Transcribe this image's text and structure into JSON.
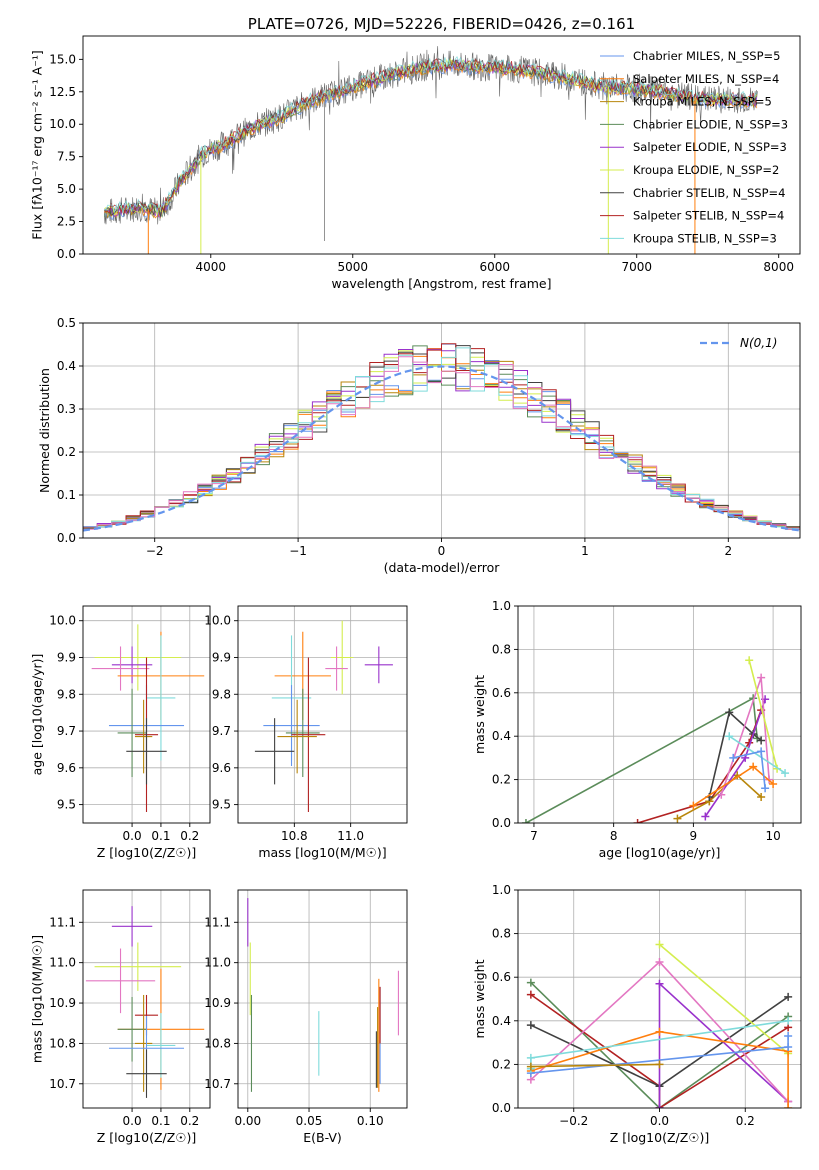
{
  "colors": {
    "Chabrier MILES": "#6495ed",
    "Salpeter MILES": "#ff7f0e",
    "Kroupa MILES": "#b8860b",
    "Chabrier ELODIE": "#5b8c5a",
    "Salpeter ELODIE": "#9932cc",
    "Kroupa ELODIE": "#d4ed4f",
    "Chabrier STELIB": "#404040",
    "Salpeter STELIB": "#b22222",
    "Kroupa STELIB": "#7fdbdb",
    "extra_pink": "#e377c2",
    "normal_curve": "#6495ed"
  },
  "chart_data": [
    {
      "id": "spectrum",
      "type": "line",
      "title": "PLATE=0726, MJD=52226, FIBERID=0426, z=0.161",
      "xlabel": "wavelength [Angstrom, rest frame]",
      "ylabel": "Flux [fλ10⁻¹⁷ erg cm⁻² s⁻¹ A⁻¹]",
      "xlim": [
        3100,
        8150
      ],
      "ylim": [
        0,
        16.8
      ],
      "xticks": [
        4000,
        5000,
        6000,
        7000,
        8000
      ],
      "xtick_labels": [
        "4000",
        "5000",
        "6000",
        "7000",
        "8000"
      ],
      "yticks": [
        0,
        2.5,
        5,
        7.5,
        10,
        12.5,
        15
      ],
      "ytick_labels": [
        "0.0",
        "2.5",
        "5.0",
        "7.5",
        "10.0",
        "12.5",
        "15.0"
      ],
      "legend_position": "upper right",
      "continuum": [
        [
          3250,
          3.2
        ],
        [
          3400,
          3.4
        ],
        [
          3500,
          3.6
        ],
        [
          3650,
          3.2
        ],
        [
          3800,
          5.8
        ],
        [
          3950,
          7.8
        ],
        [
          4100,
          8.5
        ],
        [
          4300,
          9.8
        ],
        [
          4500,
          10.6
        ],
        [
          4700,
          11.8
        ],
        [
          4900,
          12.5
        ],
        [
          5100,
          13.2
        ],
        [
          5300,
          13.9
        ],
        [
          5500,
          14.4
        ],
        [
          5700,
          14.6
        ],
        [
          5900,
          14.4
        ],
        [
          6100,
          14.3
        ],
        [
          6300,
          14.0
        ],
        [
          6500,
          13.6
        ],
        [
          6700,
          13.0
        ],
        [
          6900,
          12.8
        ],
        [
          7100,
          12.6
        ],
        [
          7300,
          12.2
        ],
        [
          7500,
          11.9
        ],
        [
          7700,
          11.9
        ],
        [
          7850,
          11.8
        ]
      ],
      "models": [
        {
          "name": "Chabrier MILES",
          "label": "Chabrier MILES, N_SSP=5",
          "n_ssp": 5
        },
        {
          "name": "Salpeter MILES",
          "label": "Salpeter MILES, N_SSP=4",
          "n_ssp": 4
        },
        {
          "name": "Kroupa MILES",
          "label": "Kroupa MILES, N_SSP=5",
          "n_ssp": 5
        },
        {
          "name": "Chabrier ELODIE",
          "label": "Chabrier ELODIE, N_SSP=3",
          "n_ssp": 3
        },
        {
          "name": "Salpeter ELODIE",
          "label": "Salpeter ELODIE, N_SSP=3",
          "n_ssp": 3
        },
        {
          "name": "Kroupa ELODIE",
          "label": "Kroupa ELODIE, N_SSP=2",
          "n_ssp": 2
        },
        {
          "name": "Chabrier STELIB",
          "label": "Chabrier STELIB, N_SSP=4",
          "n_ssp": 4
        },
        {
          "name": "Salpeter STELIB",
          "label": "Salpeter STELIB, N_SSP=4",
          "n_ssp": 4
        },
        {
          "name": "Kroupa STELIB",
          "label": "Kroupa STELIB, N_SSP=3",
          "n_ssp": 3
        }
      ],
      "drops": [
        {
          "model": "Salpeter MILES",
          "x": 3560
        },
        {
          "model": "Kroupa ELODIE",
          "x": 3930
        },
        {
          "model": "Kroupa ELODIE",
          "x": 6800
        },
        {
          "model": "Salpeter MILES",
          "x": 7410
        }
      ],
      "spikes": [
        {
          "x": 4800,
          "y": 1.0
        }
      ]
    },
    {
      "id": "residuals",
      "type": "histogram",
      "xlabel": "(data-model)/error",
      "ylabel": "Normed distribution",
      "xlim": [
        -2.5,
        2.5
      ],
      "ylim": [
        0,
        0.5
      ],
      "xticks": [
        -2,
        -1,
        0,
        1,
        2
      ],
      "xtick_labels": [
        "−2",
        "−1",
        "0",
        "1",
        "2"
      ],
      "yticks": [
        0,
        0.1,
        0.2,
        0.3,
        0.4,
        0.5
      ],
      "ytick_labels": [
        "0.0",
        "0.1",
        "0.2",
        "0.3",
        "0.4",
        "0.5"
      ],
      "grid": true,
      "bin_width": 0.1,
      "legend": [
        {
          "name": "N(0,1)",
          "style": "dashed"
        }
      ]
    },
    {
      "id": "age-vs-Z",
      "type": "errorbar",
      "xlabel": "Z [log10(Z/Z☉)]",
      "ylabel": "age  [log10(age/yr)]",
      "xlim": [
        -0.17,
        0.27
      ],
      "ylim": [
        9.45,
        10.04
      ],
      "xticks": [
        0,
        0.1,
        0.2
      ],
      "xtick_labels": [
        "0.0",
        "0.1",
        "0.2"
      ],
      "yticks": [
        9.5,
        9.6,
        9.7,
        9.8,
        9.9,
        10.0
      ],
      "ytick_labels": [
        "9.5",
        "9.6",
        "9.7",
        "9.8",
        "9.9",
        "10.0"
      ],
      "points": [
        {
          "model": "Kroupa ELODIE",
          "x": 0.02,
          "y": 9.9,
          "xerr": 0.15,
          "yerr": 0.09
        },
        {
          "model": "Salpeter ELODIE",
          "x": 0.0,
          "y": 9.88,
          "xerr": 0.07,
          "yerr": 0.05
        },
        {
          "model": "extra_pink",
          "x": -0.04,
          "y": 9.87,
          "xerr": 0.1,
          "yerr": 0.06
        },
        {
          "model": "Salpeter MILES",
          "x": 0.1,
          "y": 9.85,
          "xerr": 0.15,
          "yerr": 0.12
        },
        {
          "model": "Kroupa STELIB",
          "x": 0.1,
          "y": 9.79,
          "xerr": 0.05,
          "yerr": 0.17
        },
        {
          "model": "Chabrier MILES",
          "x": 0.05,
          "y": 9.715,
          "xerr": 0.13,
          "yerr": 0.11
        },
        {
          "model": "Chabrier ELODIE",
          "x": 0.0,
          "y": 9.695,
          "xerr": 0.05,
          "yerr": 0.12
        },
        {
          "model": "Salpeter STELIB",
          "x": 0.05,
          "y": 9.69,
          "xerr": 0.04,
          "yerr": 0.21
        },
        {
          "model": "Kroupa MILES",
          "x": 0.04,
          "y": 9.685,
          "xerr": 0.03,
          "yerr": 0.1
        },
        {
          "model": "Chabrier STELIB",
          "x": 0.05,
          "y": 9.645,
          "xerr": 0.07,
          "yerr": 0.09
        }
      ]
    },
    {
      "id": "age-vs-mass",
      "type": "errorbar",
      "xlabel": "mass [log10(M/M☉)]",
      "ylabel": "",
      "xlim": [
        10.6,
        11.2
      ],
      "ylim": [
        9.45,
        10.04
      ],
      "xticks": [
        10.8,
        11.0
      ],
      "xtick_labels": [
        "10.8",
        "11.0"
      ],
      "yticks": [
        9.5,
        9.6,
        9.7,
        9.8,
        9.9,
        10.0
      ],
      "ytick_labels": [
        "9.5",
        "9.6",
        "9.7",
        "9.8",
        "9.9",
        "10.0"
      ],
      "points": [
        {
          "model": "Salpeter ELODIE",
          "x": 11.1,
          "y": 9.88,
          "xerr": 0.05,
          "yerr": 0.05
        },
        {
          "model": "Kroupa ELODIE",
          "x": 10.97,
          "y": 9.9,
          "xerr": 0.04,
          "yerr": 0.1
        },
        {
          "model": "extra_pink",
          "x": 10.95,
          "y": 9.87,
          "xerr": 0.04,
          "yerr": 0.06
        },
        {
          "model": "Salpeter MILES",
          "x": 10.83,
          "y": 9.85,
          "xerr": 0.1,
          "yerr": 0.12
        },
        {
          "model": "Kroupa STELIB",
          "x": 10.79,
          "y": 9.79,
          "xerr": 0.07,
          "yerr": 0.17
        },
        {
          "model": "Chabrier MILES",
          "x": 10.79,
          "y": 9.715,
          "xerr": 0.1,
          "yerr": 0.11
        },
        {
          "model": "Chabrier ELODIE",
          "x": 10.83,
          "y": 9.695,
          "xerr": 0.06,
          "yerr": 0.12
        },
        {
          "model": "Salpeter STELIB",
          "x": 10.85,
          "y": 9.69,
          "xerr": 0.06,
          "yerr": 0.21
        },
        {
          "model": "Kroupa MILES",
          "x": 10.81,
          "y": 9.685,
          "xerr": 0.07,
          "yerr": 0.1
        },
        {
          "model": "Chabrier STELIB",
          "x": 10.73,
          "y": 9.645,
          "xerr": 0.07,
          "yerr": 0.09
        }
      ]
    },
    {
      "id": "weight-vs-age",
      "type": "line",
      "xlabel": "age  [log10(age/yr)]",
      "ylabel": "mass weight",
      "xlim": [
        6.8,
        10.35
      ],
      "ylim": [
        0,
        1
      ],
      "xticks": [
        7,
        8,
        9,
        10
      ],
      "xtick_labels": [
        "7",
        "8",
        "9",
        "10"
      ],
      "yticks": [
        0,
        0.2,
        0.4,
        0.6,
        0.8,
        1.0
      ],
      "ytick_labels": [
        "0.0",
        "0.2",
        "0.4",
        "0.6",
        "0.8",
        "1.0"
      ],
      "grid": true,
      "series": [
        {
          "model": "Chabrier ELODIE",
          "x": [
            6.9,
            9.75,
            9.8
          ],
          "y": [
            0.0,
            0.575,
            0.39
          ]
        },
        {
          "model": "Salpeter STELIB",
          "x": [
            8.3,
            9.2,
            9.7,
            9.85
          ],
          "y": [
            0.0,
            0.1,
            0.37,
            0.52
          ]
        },
        {
          "model": "Kroupa MILES",
          "x": [
            8.8,
            9.2,
            9.55,
            9.85
          ],
          "y": [
            0.02,
            0.1,
            0.22,
            0.12
          ]
        },
        {
          "model": "Chabrier STELIB",
          "x": [
            9.2,
            9.45,
            9.75,
            9.85
          ],
          "y": [
            0.12,
            0.51,
            0.41,
            0.38
          ]
        },
        {
          "model": "Salpeter ELODIE",
          "x": [
            9.15,
            9.65,
            9.9
          ],
          "y": [
            0.03,
            0.3,
            0.57
          ]
        },
        {
          "model": "extra_pink",
          "x": [
            9.35,
            9.85,
            9.95
          ],
          "y": [
            0.13,
            0.67,
            0.2
          ]
        },
        {
          "model": "Kroupa ELODIE",
          "x": [
            9.7,
            10.05
          ],
          "y": [
            0.75,
            0.25
          ]
        },
        {
          "model": "Kroupa STELIB",
          "x": [
            9.45,
            10.15
          ],
          "y": [
            0.4,
            0.23
          ]
        },
        {
          "model": "Salpeter MILES",
          "x": [
            9.0,
            9.75,
            10.0
          ],
          "y": [
            0.08,
            0.26,
            0.18
          ]
        },
        {
          "model": "Chabrier MILES",
          "x": [
            9.5,
            9.85,
            9.9
          ],
          "y": [
            0.3,
            0.33,
            0.16
          ]
        }
      ]
    },
    {
      "id": "mass-vs-Z",
      "type": "errorbar",
      "xlabel": "Z [log10(Z/Z☉)]",
      "ylabel": "mass [log10(M/M☉)]",
      "xlim": [
        -0.17,
        0.27
      ],
      "ylim": [
        10.64,
        11.18
      ],
      "xticks": [
        0,
        0.1,
        0.2
      ],
      "xtick_labels": [
        "0.0",
        "0.1",
        "0.2"
      ],
      "yticks": [
        10.7,
        10.8,
        10.9,
        11.0,
        11.1
      ],
      "ytick_labels": [
        "10.7",
        "10.8",
        "10.9",
        "11.0",
        "11.1"
      ],
      "points": [
        {
          "model": "Salpeter ELODIE",
          "x": 0.0,
          "y": 11.09,
          "xerr": 0.07,
          "yerr": 0.05
        },
        {
          "model": "Kroupa ELODIE",
          "x": 0.02,
          "y": 10.99,
          "xerr": 0.15,
          "yerr": 0.06
        },
        {
          "model": "extra_pink",
          "x": -0.04,
          "y": 10.955,
          "xerr": 0.12,
          "yerr": 0.08
        },
        {
          "model": "Salpeter STELIB",
          "x": 0.05,
          "y": 10.87,
          "xerr": 0.04,
          "yerr": 0.05
        },
        {
          "model": "Salpeter MILES",
          "x": 0.1,
          "y": 10.835,
          "xerr": 0.15,
          "yerr": 0.15
        },
        {
          "model": "Chabrier ELODIE",
          "x": 0.0,
          "y": 10.835,
          "xerr": 0.05,
          "yerr": 0.08
        },
        {
          "model": "Kroupa MILES",
          "x": 0.04,
          "y": 10.8,
          "xerr": 0.03,
          "yerr": 0.12
        },
        {
          "model": "Kroupa STELIB",
          "x": 0.1,
          "y": 10.795,
          "xerr": 0.05,
          "yerr": 0.08
        },
        {
          "model": "Chabrier MILES",
          "x": 0.05,
          "y": 10.788,
          "xerr": 0.13,
          "yerr": 0.08
        },
        {
          "model": "Chabrier STELIB",
          "x": 0.05,
          "y": 10.725,
          "xerr": 0.07,
          "yerr": 0.06
        }
      ]
    },
    {
      "id": "mass-vs-ebv",
      "type": "errorbar",
      "xlabel": "E(B-V)",
      "ylabel": "",
      "xlim": [
        -0.008,
        0.13
      ],
      "ylim": [
        10.64,
        11.18
      ],
      "xticks": [
        0.0,
        0.05,
        0.1
      ],
      "xtick_labels": [
        "0.00",
        "0.05",
        "0.10"
      ],
      "yticks": [
        10.7,
        10.8,
        10.9,
        11.0,
        11.1
      ],
      "ytick_labels": [
        "10.7",
        "10.8",
        "10.9",
        "11.0",
        "11.1"
      ],
      "points": [
        {
          "model": "Salpeter ELODIE",
          "x": 0.0,
          "y": 11.1,
          "xerr": 0.0,
          "yerr": 0.06
        },
        {
          "model": "Kroupa ELODIE",
          "x": 0.002,
          "y": 10.96,
          "xerr": 0.0,
          "yerr": 0.09
        },
        {
          "model": "Chabrier ELODIE",
          "x": 0.003,
          "y": 10.8,
          "xerr": 0.0,
          "yerr": 0.12
        },
        {
          "model": "Kroupa STELIB",
          "x": 0.058,
          "y": 10.8,
          "xerr": 0.0,
          "yerr": 0.08
        },
        {
          "model": "Chabrier STELIB",
          "x": 0.105,
          "y": 10.76,
          "xerr": 0.0,
          "yerr": 0.07
        },
        {
          "model": "Salpeter MILES",
          "x": 0.107,
          "y": 10.82,
          "xerr": 0.0,
          "yerr": 0.14
        },
        {
          "model": "Chabrier MILES",
          "x": 0.108,
          "y": 10.82,
          "xerr": 0.0,
          "yerr": 0.12
        },
        {
          "model": "Salpeter STELIB",
          "x": 0.108,
          "y": 10.87,
          "xerr": 0.0,
          "yerr": 0.07
        },
        {
          "model": "Kroupa MILES",
          "x": 0.106,
          "y": 10.79,
          "xerr": 0.0,
          "yerr": 0.1
        },
        {
          "model": "extra_pink",
          "x": 0.123,
          "y": 10.9,
          "xerr": 0.0,
          "yerr": 0.08
        }
      ]
    },
    {
      "id": "weight-vs-Z",
      "type": "line",
      "xlabel": "Z [log10(Z/Z☉)]",
      "ylabel": "mass weight",
      "xlim": [
        -0.33,
        0.33
      ],
      "ylim": [
        0,
        1
      ],
      "xticks": [
        -0.2,
        0.0,
        0.2
      ],
      "xtick_labels": [
        "−0.2",
        "0.0",
        "0.2"
      ],
      "yticks": [
        0,
        0.2,
        0.4,
        0.6,
        0.8,
        1.0
      ],
      "ytick_labels": [
        "0.0",
        "0.2",
        "0.4",
        "0.6",
        "0.8",
        "1.0"
      ],
      "grid": true,
      "series": [
        {
          "model": "Chabrier ELODIE",
          "x": [
            -0.3,
            0.0,
            0.3
          ],
          "y": [
            0.575,
            0.0,
            0.42
          ]
        },
        {
          "model": "Salpeter STELIB",
          "x": [
            -0.3,
            0.0,
            0.0,
            0.3
          ],
          "y": [
            0.52,
            0.1,
            0.0,
            0.37
          ]
        },
        {
          "model": "Chabrier STELIB",
          "x": [
            -0.3,
            0.0,
            0.3
          ],
          "y": [
            0.38,
            0.1,
            0.51
          ]
        },
        {
          "model": "Salpeter ELODIE",
          "x": [
            0.0,
            0.0,
            0.3
          ],
          "y": [
            0.0,
            0.57,
            0.03
          ]
        },
        {
          "model": "extra_pink",
          "x": [
            -0.3,
            0.0,
            0.3
          ],
          "y": [
            0.13,
            0.67,
            0.03
          ]
        },
        {
          "model": "Kroupa ELODIE",
          "x": [
            0.0,
            0.3
          ],
          "y": [
            0.75,
            0.25
          ]
        },
        {
          "model": "Salpeter MILES",
          "x": [
            -0.3,
            0.0,
            0.3,
            0.3
          ],
          "y": [
            0.17,
            0.35,
            0.26,
            0.0
          ]
        },
        {
          "model": "Chabrier MILES",
          "x": [
            -0.3,
            0.3,
            0.3
          ],
          "y": [
            0.16,
            0.28,
            0.33
          ]
        },
        {
          "model": "Kroupa STELIB",
          "x": [
            -0.3,
            -0.3,
            0.3
          ],
          "y": [
            0.18,
            0.23,
            0.4
          ]
        },
        {
          "model": "Kroupa MILES",
          "x": [
            -0.3,
            0.0
          ],
          "y": [
            0.19,
            0.2
          ]
        }
      ]
    }
  ]
}
